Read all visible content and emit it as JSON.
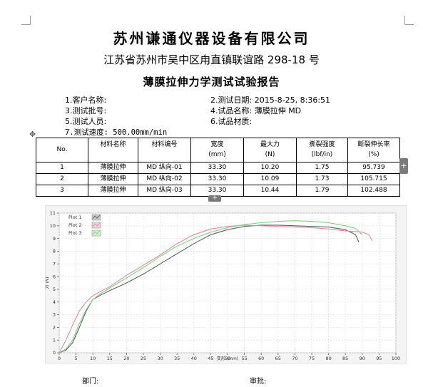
{
  "document": {
    "company": "苏州谦通仪器设备有限公司",
    "address": "江苏省苏州市吴中区甪直镇联谊路 298-18 号",
    "report_title": "薄膜拉伸力学测试试验报告"
  },
  "info": {
    "customer": "1.客户名称:",
    "batch": "3.测试批号:",
    "tester": "5.测试人员:",
    "speed": "7.测试速度: 500.00mm/min",
    "date": "2.测试日期: 2015-8-25, 8:36:51",
    "sample_name": "4.试品名称: 薄膜拉伸 MD",
    "material": "6.试品材质:"
  },
  "table": {
    "headers": [
      {
        "line1": "No.",
        "line2": ""
      },
      {
        "line1": "材料名称",
        "line2": ""
      },
      {
        "line1": "材料编号",
        "line2": ""
      },
      {
        "line1": "宽度",
        "line2": "(mm)"
      },
      {
        "line1": "最大力",
        "line2": "(N)"
      },
      {
        "line1": "撕裂强度",
        "line2": "(lbf/in)"
      },
      {
        "line1": "断裂伸长率",
        "line2": "(%)"
      }
    ],
    "rows": [
      [
        "1",
        "薄膜拉伸",
        "MD 纵向-01",
        "33.30",
        "10.20",
        "1.75",
        "95.739"
      ],
      [
        "2",
        "薄膜拉伸",
        "MD 纵向-02",
        "33.30",
        "10.09",
        "1.73",
        "105.715"
      ],
      [
        "3",
        "薄膜拉伸",
        "MD 纵向-03",
        "33.30",
        "10.44",
        "1.79",
        "102.488"
      ]
    ]
  },
  "controls": {
    "move_handle": "✥",
    "add_column": "+",
    "add_row": "+"
  },
  "chart_data": {
    "type": "line",
    "xlabel": "变形 (mm)",
    "ylabel": "力 (N)",
    "xlim": [
      0,
      100
    ],
    "ylim": [
      0,
      11
    ],
    "x_ticks": [
      0,
      5,
      10,
      15,
      20,
      25,
      30,
      35,
      40,
      45,
      50,
      55,
      60,
      65,
      70,
      75,
      80,
      85,
      90,
      95,
      100
    ],
    "y_ticks": [
      0,
      1,
      2,
      3,
      4,
      5,
      6,
      7,
      8,
      9,
      10,
      11
    ],
    "grid": true,
    "legend_position": "top-left",
    "series": [
      {
        "name": "Plot 1",
        "color": "#606060",
        "x": [
          0,
          2,
          4,
          6,
          8,
          10,
          12,
          15,
          20,
          25,
          30,
          35,
          40,
          45,
          50,
          55,
          60,
          65,
          70,
          75,
          80,
          85,
          88,
          89
        ],
        "y": [
          0,
          0.2,
          0.8,
          2.0,
          3.3,
          4.2,
          4.5,
          4.9,
          5.5,
          6.2,
          7.0,
          7.8,
          8.6,
          9.3,
          9.7,
          9.95,
          10.05,
          10.05,
          10.0,
          9.95,
          9.9,
          9.7,
          9.3,
          8.7
        ]
      },
      {
        "name": "Plot 2",
        "color": "#e08aa0",
        "x": [
          0,
          2,
          4,
          6,
          8,
          10,
          12,
          15,
          20,
          25,
          30,
          35,
          40,
          45,
          50,
          55,
          60,
          65,
          70,
          75,
          80,
          85,
          90,
          92,
          93
        ],
        "y": [
          0,
          1.0,
          2.2,
          3.3,
          4.0,
          4.5,
          4.8,
          5.2,
          6.1,
          6.9,
          7.7,
          8.6,
          9.3,
          9.75,
          9.95,
          10.05,
          10.0,
          9.95,
          9.9,
          9.85,
          9.75,
          9.6,
          9.5,
          9.3,
          8.8
        ]
      },
      {
        "name": "Plot 3",
        "color": "#7ed37e",
        "x": [
          0,
          2,
          4,
          6,
          8,
          10,
          12,
          15,
          20,
          25,
          30,
          35,
          40,
          45,
          50,
          55,
          60,
          65,
          70,
          75,
          80,
          85,
          88,
          90
        ],
        "y": [
          0,
          0.3,
          1.0,
          2.3,
          3.4,
          4.2,
          4.6,
          5.1,
          5.9,
          6.7,
          7.6,
          8.4,
          9.0,
          9.5,
          9.85,
          10.1,
          10.25,
          10.35,
          10.4,
          10.35,
          10.25,
          10.0,
          9.8,
          9.3
        ]
      }
    ]
  },
  "signatures": {
    "department": "部门:",
    "review": "审批:"
  }
}
